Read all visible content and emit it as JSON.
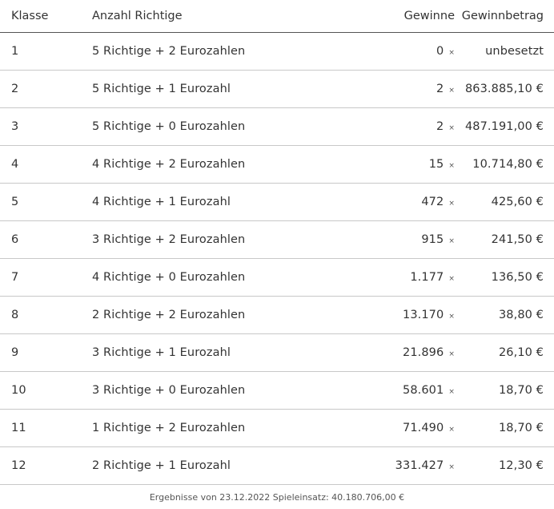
{
  "headers": {
    "klasse": "Klasse",
    "anzahl": "Anzahl Richtige",
    "gewinne": "Gewinne",
    "betrag": "Gewinnbetrag"
  },
  "times_symbol": "×",
  "rows": [
    {
      "klasse": "1",
      "anzahl": "5 Richtige + 2 Eurozahlen",
      "gewinne": "0",
      "betrag": "unbesetzt"
    },
    {
      "klasse": "2",
      "anzahl": "5 Richtige + 1 Eurozahl",
      "gewinne": "2",
      "betrag": "863.885,10 €"
    },
    {
      "klasse": "3",
      "anzahl": "5 Richtige + 0 Eurozahlen",
      "gewinne": "2",
      "betrag": "487.191,00 €"
    },
    {
      "klasse": "4",
      "anzahl": "4 Richtige + 2 Eurozahlen",
      "gewinne": "15",
      "betrag": "10.714,80 €"
    },
    {
      "klasse": "5",
      "anzahl": "4 Richtige + 1 Eurozahl",
      "gewinne": "472",
      "betrag": "425,60 €"
    },
    {
      "klasse": "6",
      "anzahl": "3 Richtige + 2 Eurozahlen",
      "gewinne": "915",
      "betrag": "241,50 €"
    },
    {
      "klasse": "7",
      "anzahl": "4 Richtige + 0 Eurozahlen",
      "gewinne": "1.177",
      "betrag": "136,50 €"
    },
    {
      "klasse": "8",
      "anzahl": "2 Richtige + 2 Eurozahlen",
      "gewinne": "13.170",
      "betrag": "38,80 €"
    },
    {
      "klasse": "9",
      "anzahl": "3 Richtige + 1 Eurozahl",
      "gewinne": "21.896",
      "betrag": "26,10 €"
    },
    {
      "klasse": "10",
      "anzahl": "3 Richtige + 0 Eurozahlen",
      "gewinne": "58.601",
      "betrag": "18,70 €"
    },
    {
      "klasse": "11",
      "anzahl": "1 Richtige + 2 Eurozahlen",
      "gewinne": "71.490",
      "betrag": "18,70 €"
    },
    {
      "klasse": "12",
      "anzahl": "2 Richtige + 1 Eurozahl",
      "gewinne": "331.427",
      "betrag": "12,30 €"
    }
  ],
  "footer": "Ergebnisse von 23.12.2022 Spieleinsatz: 40.180.706,00 €"
}
